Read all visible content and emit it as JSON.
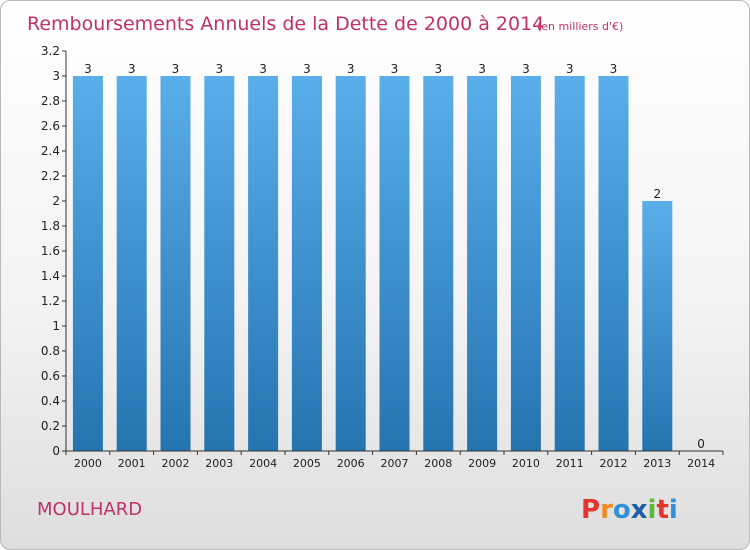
{
  "header": {
    "title": "Remboursements Annuels de la Dette de 2000 à 2014",
    "subtitle": "(en milliers d'€)"
  },
  "footer": {
    "commune": "MOULHARD",
    "logo_text": "Proxiti"
  },
  "colors": {
    "title": "#c0306a",
    "bar_top": "#5aaeea",
    "bar_bottom": "#2474b0",
    "axis": "#333333",
    "logo_letters": [
      "#e5342b",
      "#f08b20",
      "#2f8fd8",
      "#1f5ea8",
      "#5bb83a",
      "#e5342b",
      "#2f8fd8"
    ]
  },
  "chart_data": {
    "type": "bar",
    "title": "Remboursements Annuels de la Dette de 2000 à 2014",
    "subtitle": "(en milliers d'€)",
    "categories": [
      "2000",
      "2001",
      "2002",
      "2003",
      "2004",
      "2005",
      "2006",
      "2007",
      "2008",
      "2009",
      "2010",
      "2011",
      "2012",
      "2013",
      "2014"
    ],
    "values": [
      3,
      3,
      3,
      3,
      3,
      3,
      3,
      3,
      3,
      3,
      3,
      3,
      3,
      2,
      0
    ],
    "data_labels": [
      "3",
      "3",
      "3",
      "3",
      "3",
      "3",
      "3",
      "3",
      "3",
      "3",
      "3",
      "3",
      "3",
      "2",
      "0"
    ],
    "y_ticks": [
      "0",
      "0.2",
      "0.4",
      "0.6",
      "0.8",
      "1",
      "1.2",
      "1.4",
      "1.6",
      "1.8",
      "2",
      "2.2",
      "2.4",
      "2.6",
      "2.8",
      "3",
      "3.2"
    ],
    "ylim": [
      0,
      3.2
    ],
    "grid": false,
    "xlabel": "",
    "ylabel": ""
  }
}
